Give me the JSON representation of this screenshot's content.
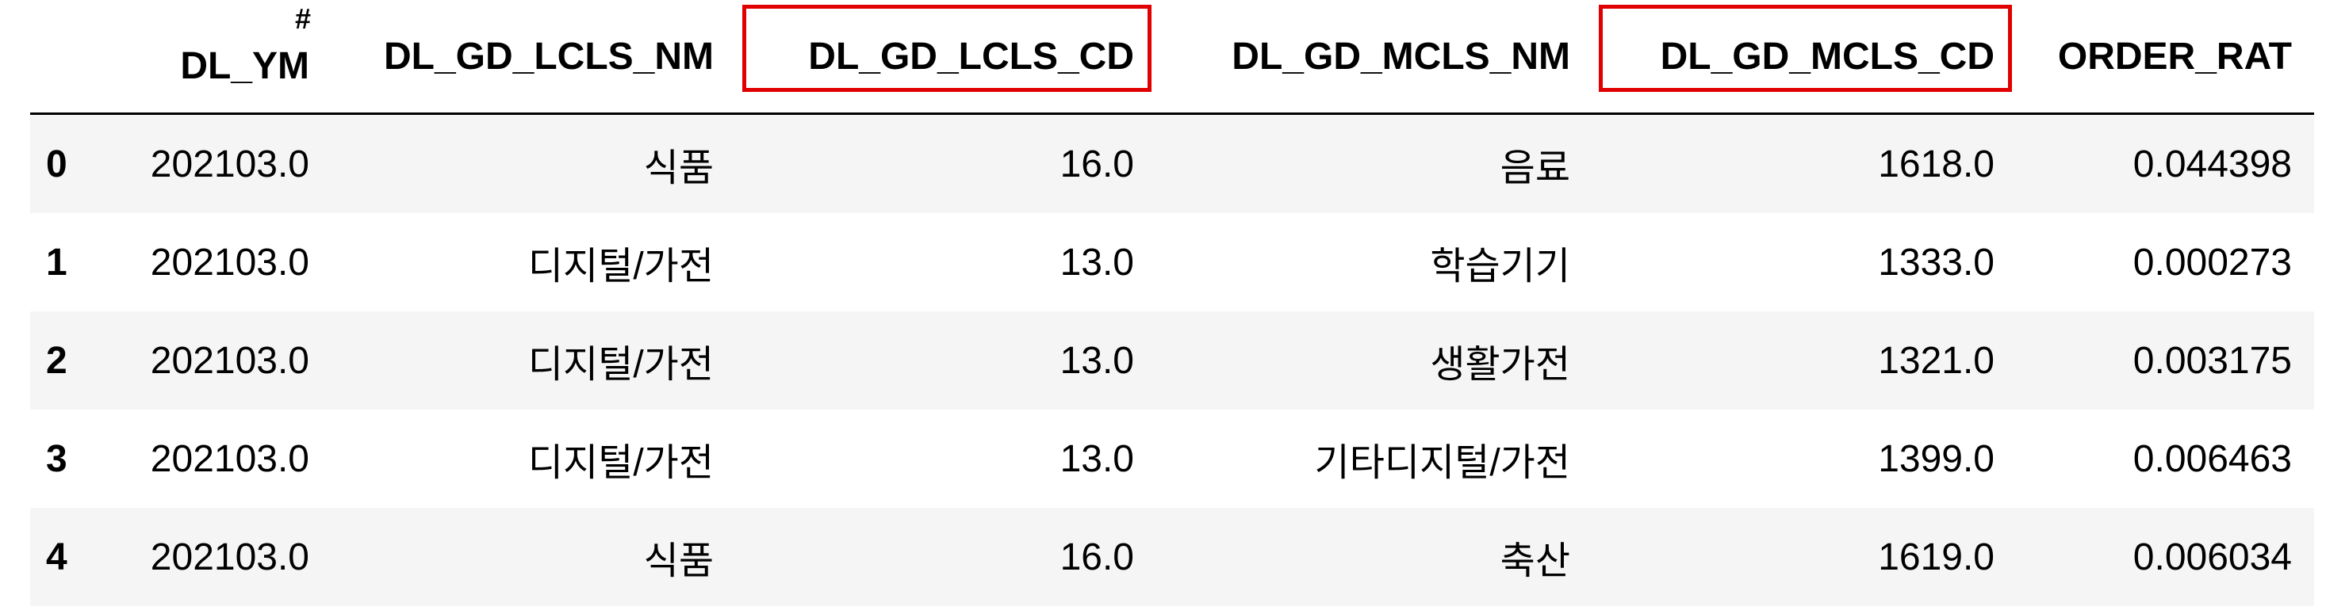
{
  "index_header": {
    "hash": "#",
    "name": "DL_YM"
  },
  "columns": [
    {
      "label": "DL_GD_LCLS_NM",
      "highlight": false
    },
    {
      "label": "DL_GD_LCLS_CD",
      "highlight": true
    },
    {
      "label": "DL_GD_MCLS_NM",
      "highlight": false
    },
    {
      "label": "DL_GD_MCLS_CD",
      "highlight": true
    },
    {
      "label": "ORDER_RAT",
      "highlight": false
    }
  ],
  "rows": [
    {
      "idx": "0",
      "ym": "202103.0",
      "cells": [
        "식품",
        "16.0",
        "음료",
        "1618.0",
        "0.044398"
      ]
    },
    {
      "idx": "1",
      "ym": "202103.0",
      "cells": [
        "디지털/가전",
        "13.0",
        "학습기기",
        "1333.0",
        "0.000273"
      ]
    },
    {
      "idx": "2",
      "ym": "202103.0",
      "cells": [
        "디지털/가전",
        "13.0",
        "생활가전",
        "1321.0",
        "0.003175"
      ]
    },
    {
      "idx": "3",
      "ym": "202103.0",
      "cells": [
        "디지털/가전",
        "13.0",
        "기타디지털/가전",
        "1399.0",
        "0.006463"
      ]
    },
    {
      "idx": "4",
      "ym": "202103.0",
      "cells": [
        "식품",
        "16.0",
        "축산",
        "1619.0",
        "0.006034"
      ]
    }
  ],
  "colors": {
    "highlight_border": "#e00000",
    "stripe": "#f5f5f5"
  }
}
